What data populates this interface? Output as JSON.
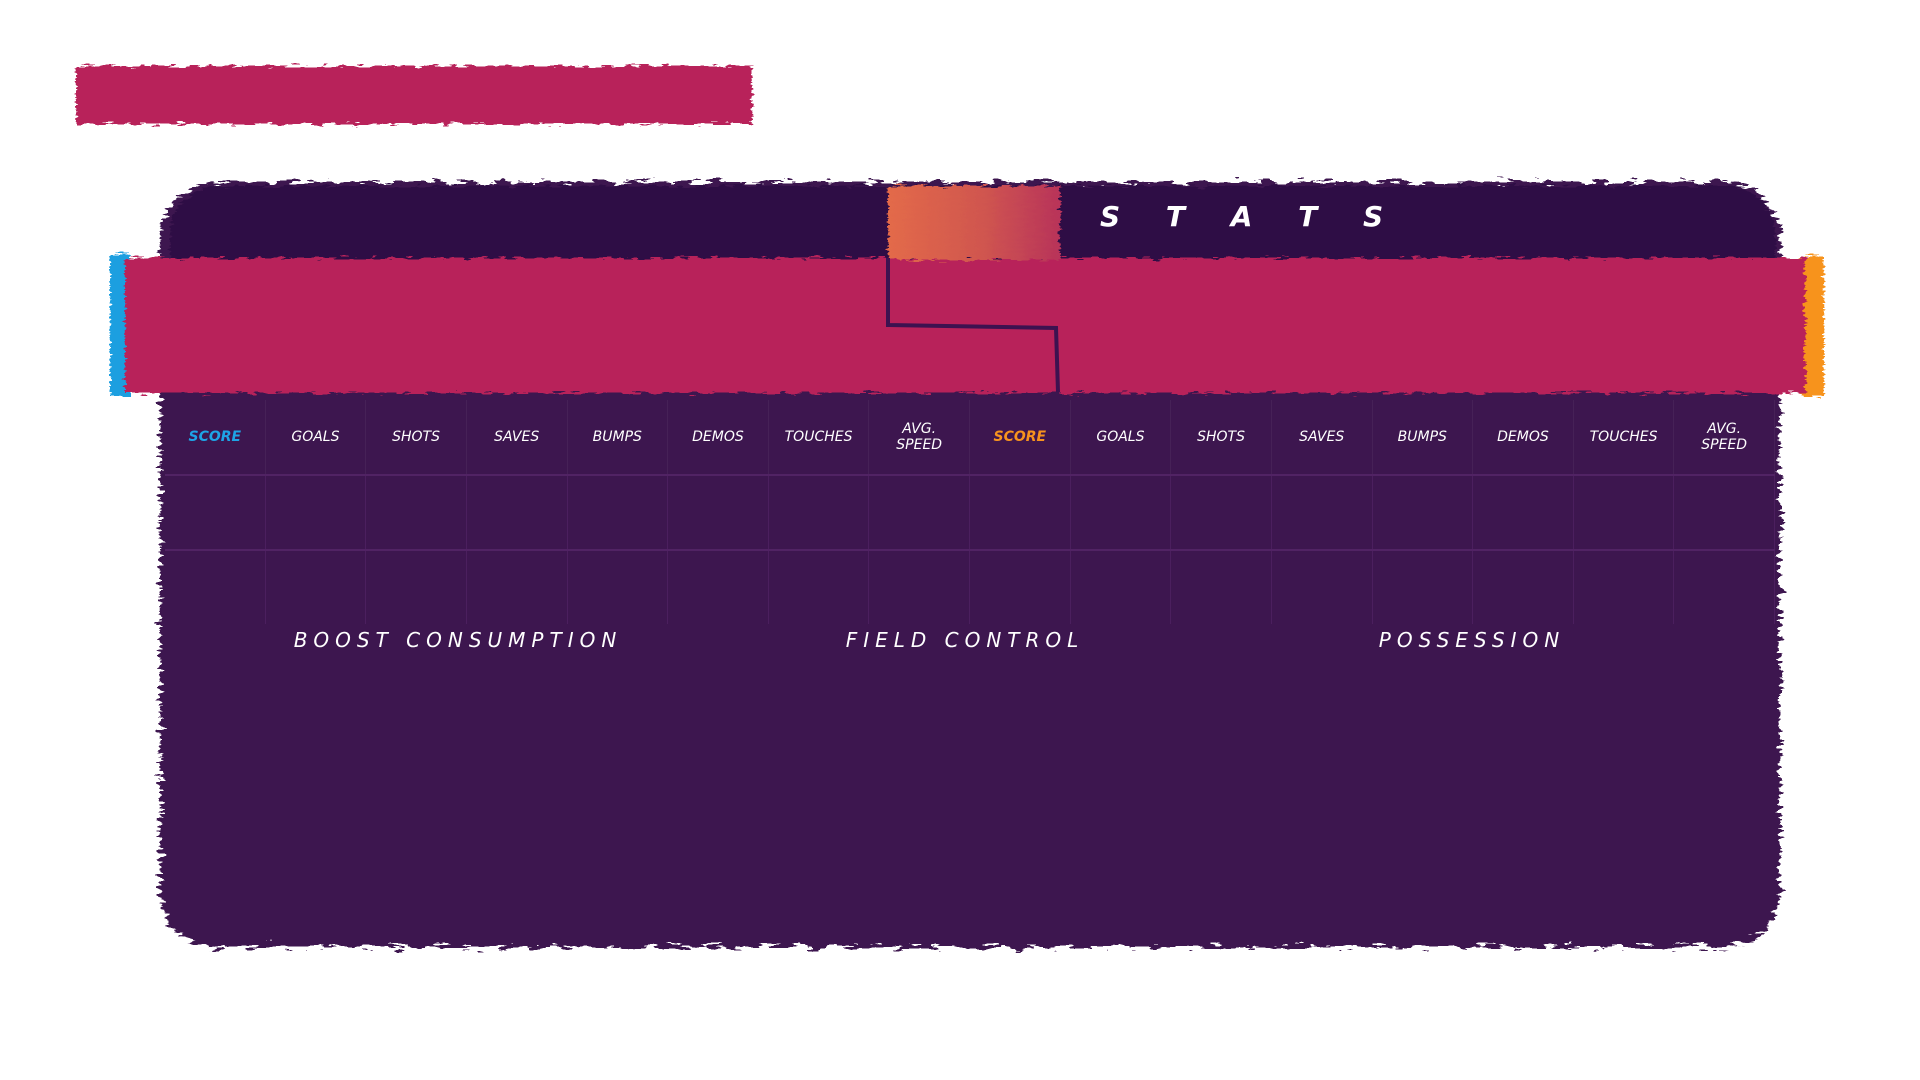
{
  "colors": {
    "panel": "#3d1250",
    "panel_top": "#2d0f44",
    "team_band": "#b8235a",
    "banner": "#b8235a",
    "blue_team": "#1e9fe0",
    "orange_team": "#f7931e",
    "notch": "#e36a4a",
    "text": "#ffffff"
  },
  "header": {
    "title": "S T A T S"
  },
  "stat_columns": {
    "blue": [
      {
        "label": "SCORE",
        "accent": "blue"
      },
      {
        "label": "GOALS"
      },
      {
        "label": "SHOTS"
      },
      {
        "label": "SAVES"
      },
      {
        "label": "BUMPS"
      },
      {
        "label": "DEMOS"
      },
      {
        "label": "TOUCHES"
      },
      {
        "label": "AVG.\nSPEED"
      }
    ],
    "orange": [
      {
        "label": "SCORE",
        "accent": "orange"
      },
      {
        "label": "GOALS"
      },
      {
        "label": "SHOTS"
      },
      {
        "label": "SAVES"
      },
      {
        "label": "BUMPS"
      },
      {
        "label": "DEMOS"
      },
      {
        "label": "TOUCHES"
      },
      {
        "label": "AVG.\nSPEED"
      }
    ]
  },
  "sections": {
    "boost": "BOOST CONSUMPTION",
    "field": "FIELD CONTROL",
    "possession": "POSSESSION"
  }
}
